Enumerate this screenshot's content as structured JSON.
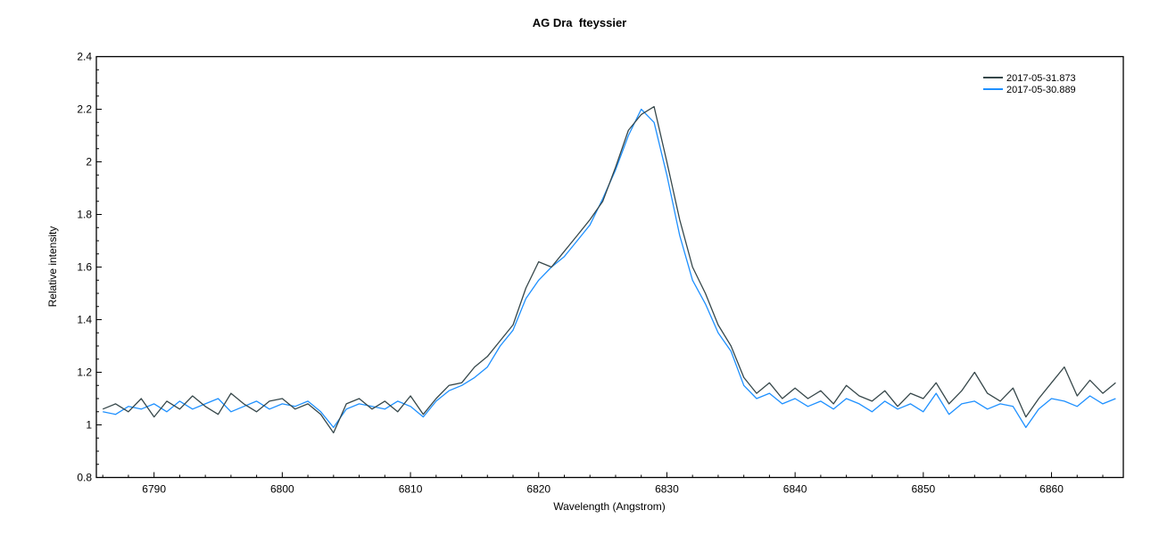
{
  "chart_data": {
    "type": "line",
    "title": "AG Dra  fteyssier",
    "xlabel": "Wavelength (Angstrom)",
    "ylabel": "Relative intensity",
    "xlim": [
      6785.5,
      6865.6
    ],
    "ylim": [
      0.8,
      2.4
    ],
    "xticks": [
      6790,
      6800,
      6810,
      6820,
      6830,
      6840,
      6850,
      6860
    ],
    "yticks": [
      0.8,
      1,
      1.2,
      1.4,
      1.6,
      1.8,
      2,
      2.2,
      2.4
    ],
    "ytick_labels": [
      "0.8",
      "1",
      "1.2",
      "1.4",
      "1.6",
      "1.8",
      "2",
      "2.2",
      "2.4"
    ],
    "grid": false,
    "legend_position": "top-right",
    "x": [
      6786,
      6787,
      6788,
      6789,
      6790,
      6791,
      6792,
      6793,
      6794,
      6795,
      6796,
      6797,
      6798,
      6799,
      6800,
      6801,
      6802,
      6803,
      6804,
      6805,
      6806,
      6807,
      6808,
      6809,
      6810,
      6811,
      6812,
      6813,
      6814,
      6815,
      6816,
      6817,
      6818,
      6819,
      6820,
      6821,
      6822,
      6823,
      6824,
      6825,
      6826,
      6827,
      6828,
      6829,
      6830,
      6831,
      6832,
      6833,
      6834,
      6835,
      6836,
      6837,
      6838,
      6839,
      6840,
      6841,
      6842,
      6843,
      6844,
      6845,
      6846,
      6847,
      6848,
      6849,
      6850,
      6851,
      6852,
      6853,
      6854,
      6855,
      6856,
      6857,
      6858,
      6859,
      6860,
      6861,
      6862,
      6863,
      6864,
      6865
    ],
    "series": [
      {
        "name": "2017-05-31.873",
        "color": "#36474a",
        "values": [
          1.06,
          1.08,
          1.05,
          1.1,
          1.03,
          1.09,
          1.06,
          1.11,
          1.07,
          1.04,
          1.12,
          1.08,
          1.05,
          1.09,
          1.1,
          1.06,
          1.08,
          1.04,
          0.97,
          1.08,
          1.1,
          1.06,
          1.09,
          1.05,
          1.11,
          1.04,
          1.1,
          1.15,
          1.16,
          1.22,
          1.26,
          1.32,
          1.38,
          1.52,
          1.62,
          1.6,
          1.66,
          1.72,
          1.78,
          1.85,
          1.98,
          2.12,
          2.18,
          2.21,
          2.0,
          1.78,
          1.6,
          1.5,
          1.38,
          1.3,
          1.18,
          1.12,
          1.16,
          1.1,
          1.14,
          1.1,
          1.13,
          1.08,
          1.15,
          1.11,
          1.09,
          1.13,
          1.07,
          1.12,
          1.1,
          1.16,
          1.08,
          1.13,
          1.2,
          1.12,
          1.09,
          1.14,
          1.03,
          1.1,
          1.16,
          1.22,
          1.11,
          1.17,
          1.12,
          1.16
        ]
      },
      {
        "name": "2017-05-30.889",
        "color": "#1e90ff",
        "values": [
          1.05,
          1.04,
          1.07,
          1.06,
          1.08,
          1.05,
          1.09,
          1.06,
          1.08,
          1.1,
          1.05,
          1.07,
          1.09,
          1.06,
          1.08,
          1.07,
          1.09,
          1.05,
          0.99,
          1.06,
          1.08,
          1.07,
          1.06,
          1.09,
          1.07,
          1.03,
          1.09,
          1.13,
          1.15,
          1.18,
          1.22,
          1.3,
          1.36,
          1.48,
          1.55,
          1.6,
          1.64,
          1.7,
          1.76,
          1.86,
          1.97,
          2.1,
          2.2,
          2.15,
          1.95,
          1.72,
          1.55,
          1.46,
          1.35,
          1.28,
          1.15,
          1.1,
          1.12,
          1.08,
          1.1,
          1.07,
          1.09,
          1.06,
          1.1,
          1.08,
          1.05,
          1.09,
          1.06,
          1.08,
          1.05,
          1.12,
          1.04,
          1.08,
          1.09,
          1.06,
          1.08,
          1.07,
          0.99,
          1.06,
          1.1,
          1.09,
          1.07,
          1.11,
          1.08,
          1.1
        ]
      }
    ]
  }
}
